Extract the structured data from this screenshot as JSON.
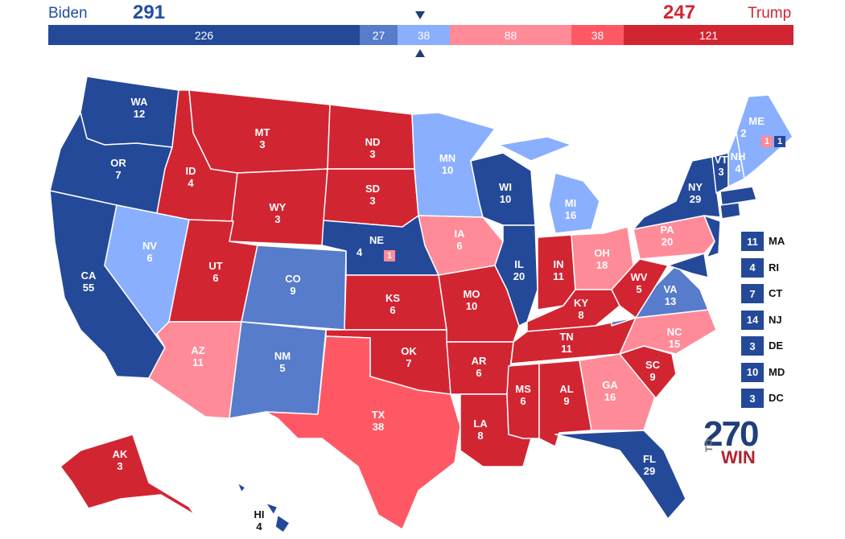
{
  "summary": {
    "dem_name": "Biden",
    "dem_total": "291",
    "rep_name": "Trump",
    "rep_total": "247",
    "segments": [
      {
        "value": "226",
        "color": "#244999"
      },
      {
        "value": "27",
        "color": "#577ccc"
      },
      {
        "value": "38",
        "color": "#8aafff"
      },
      {
        "value": "88",
        "color": "#ff8b98"
      },
      {
        "value": "38",
        "color": "#ff5865"
      },
      {
        "value": "121",
        "color": "#d22532"
      }
    ]
  },
  "colors": {
    "safe_d": "#244999",
    "likely_d": "#577ccc",
    "lean_d": "#8aafff",
    "lean_r": "#ff8b98",
    "likely_r": "#ff5865",
    "safe_r": "#d22532"
  },
  "states": [
    {
      "abbr": "WA",
      "ev": "12"
    },
    {
      "abbr": "OR",
      "ev": "7"
    },
    {
      "abbr": "CA",
      "ev": "55"
    },
    {
      "abbr": "NV",
      "ev": "6"
    },
    {
      "abbr": "ID",
      "ev": "4"
    },
    {
      "abbr": "MT",
      "ev": "3"
    },
    {
      "abbr": "WY",
      "ev": "3"
    },
    {
      "abbr": "UT",
      "ev": "6"
    },
    {
      "abbr": "AZ",
      "ev": "11"
    },
    {
      "abbr": "CO",
      "ev": "9"
    },
    {
      "abbr": "NM",
      "ev": "5"
    },
    {
      "abbr": "ND",
      "ev": "3"
    },
    {
      "abbr": "SD",
      "ev": "3"
    },
    {
      "abbr": "NE",
      "ev": "4"
    },
    {
      "abbr": "KS",
      "ev": "6"
    },
    {
      "abbr": "OK",
      "ev": "7"
    },
    {
      "abbr": "TX",
      "ev": "38"
    },
    {
      "abbr": "MN",
      "ev": "10"
    },
    {
      "abbr": "IA",
      "ev": "6"
    },
    {
      "abbr": "MO",
      "ev": "10"
    },
    {
      "abbr": "AR",
      "ev": "6"
    },
    {
      "abbr": "LA",
      "ev": "8"
    },
    {
      "abbr": "WI",
      "ev": "10"
    },
    {
      "abbr": "IL",
      "ev": "20"
    },
    {
      "abbr": "MI",
      "ev": "16"
    },
    {
      "abbr": "IN",
      "ev": "11"
    },
    {
      "abbr": "OH",
      "ev": "18"
    },
    {
      "abbr": "KY",
      "ev": "8"
    },
    {
      "abbr": "TN",
      "ev": "11"
    },
    {
      "abbr": "MS",
      "ev": "6"
    },
    {
      "abbr": "AL",
      "ev": "9"
    },
    {
      "abbr": "GA",
      "ev": "16"
    },
    {
      "abbr": "FL",
      "ev": "29"
    },
    {
      "abbr": "SC",
      "ev": "9"
    },
    {
      "abbr": "NC",
      "ev": "15"
    },
    {
      "abbr": "VA",
      "ev": "13"
    },
    {
      "abbr": "WV",
      "ev": "5"
    },
    {
      "abbr": "PA",
      "ev": "20"
    },
    {
      "abbr": "NY",
      "ev": "29"
    },
    {
      "abbr": "VT",
      "ev": "3"
    },
    {
      "abbr": "NH",
      "ev": "4"
    },
    {
      "abbr": "ME",
      "ev": "2"
    },
    {
      "abbr": "AK",
      "ev": "3"
    },
    {
      "abbr": "HI",
      "ev": "4"
    }
  ],
  "splits": {
    "ne_district": "1",
    "me_district_1": "1",
    "me_district_2": "1"
  },
  "small_states": [
    {
      "ev": "11",
      "abbr": "MA"
    },
    {
      "ev": "4",
      "abbr": "RI"
    },
    {
      "ev": "7",
      "abbr": "CT"
    },
    {
      "ev": "14",
      "abbr": "NJ"
    },
    {
      "ev": "3",
      "abbr": "DE"
    },
    {
      "ev": "10",
      "abbr": "MD"
    },
    {
      "ev": "3",
      "abbr": "DC"
    }
  ],
  "logo": {
    "number": "270",
    "to": "TO",
    "win": "WIN"
  }
}
